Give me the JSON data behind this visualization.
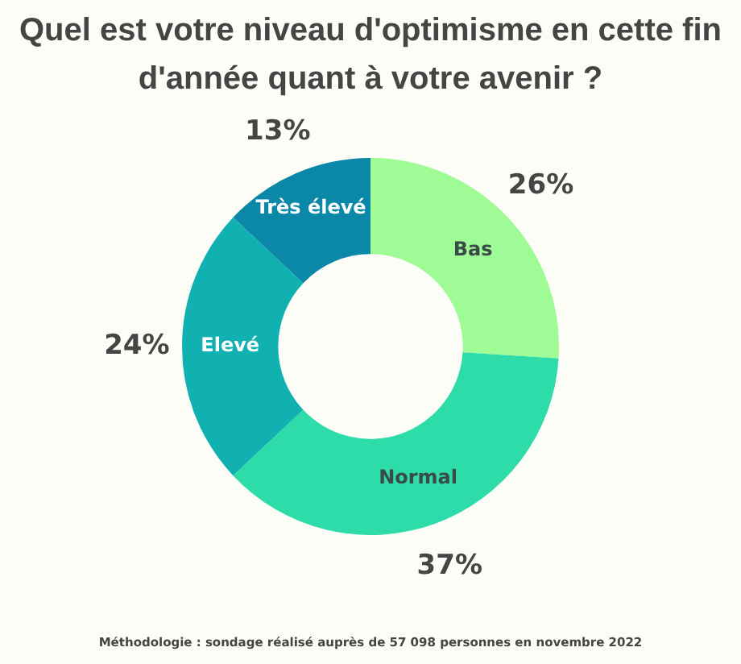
{
  "chart_data": {
    "type": "donut",
    "title": "Quel est votre niveau d'optimisme en cette fin d'année quant à votre avenir ?",
    "categories": [
      "Bas",
      "Normal",
      "Elevé",
      "Très élevé"
    ],
    "values": [
      26,
      37,
      24,
      13
    ],
    "colors": [
      "#9ffb95",
      "#2ddca8",
      "#12b1b1",
      "#0b87a8"
    ],
    "value_labels": [
      "26%",
      "37%",
      "24%",
      "13%"
    ],
    "legend": false,
    "annotations": [
      "Méthodologie : sondage réalisé auprès de 57 098 personnes en novembre 2022"
    ]
  }
}
